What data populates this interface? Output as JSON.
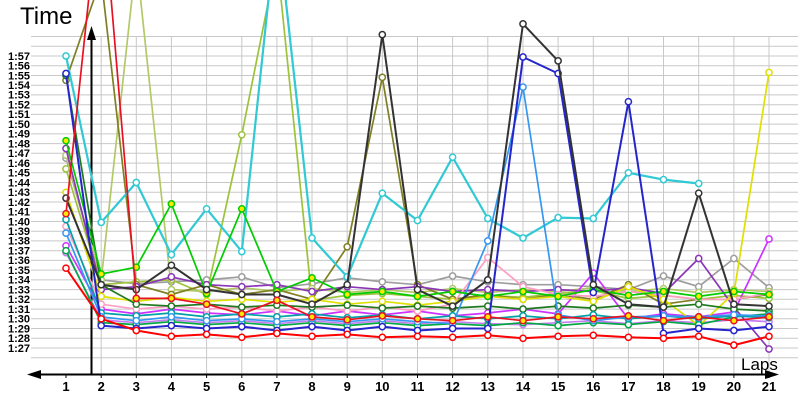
{
  "chart_data": {
    "type": "line",
    "title": "",
    "ylabel": "Time",
    "xlabel": "Laps",
    "grid": true,
    "legend": "none",
    "y_axis": {
      "unit": "m:ss lap time",
      "min_seconds": 87,
      "max_seconds": 117,
      "tick_step_seconds": 1,
      "tick_labels": [
        "1:27",
        "1:28",
        "1:29",
        "1:30",
        "1:31",
        "1:32",
        "1:33",
        "1:34",
        "1:35",
        "1:36",
        "1:37",
        "1:38",
        "1:39",
        "1:40",
        "1:41",
        "1:42",
        "1:43",
        "1:44",
        "1:45",
        "1:46",
        "1:47",
        "1:48",
        "1:49",
        "1:50",
        "1:51",
        "1:52",
        "1:53",
        "1:54",
        "1:55",
        "1:56",
        "1:57"
      ]
    },
    "x_axis": {
      "tick_labels": [
        "1",
        "2",
        "3",
        "4",
        "5",
        "6",
        "7",
        "8",
        "9",
        "10",
        "11",
        "12",
        "13",
        "14",
        "15",
        "16",
        "17",
        "18",
        "19",
        "20",
        "21"
      ]
    },
    "note_values_are_lap_times_in_seconds": "values above ~122 run off the top of the image (pit stops); null = no lap recorded",
    "series": [
      {
        "name": "gray",
        "color": "#9E9E9E",
        "marker_fill": "#FFFFFF",
        "values": [
          106.5,
          94,
          93.6,
          93.8,
          94,
          94.3,
          93.2,
          93.6,
          94.2,
          93.8,
          93.5,
          94.4,
          93.8,
          93.5,
          93.5,
          93.3,
          93,
          94.4,
          93.3,
          96.2,
          93.2
        ]
      },
      {
        "name": "yellowgreen-a",
        "color": "#9DC23B",
        "marker_fill": "#FFFFFF",
        "values": [
          105.4,
          93.5,
          93.8,
          94,
          92.5,
          108.9,
          127,
          91.9,
          92.4,
          92.6,
          92.3,
          92,
          92.4,
          92.2,
          92.6,
          92.9,
          92.1,
          92.4,
          92,
          92.4,
          92.1
        ]
      },
      {
        "name": "yellowgreen-b",
        "color": "#B3C968",
        "marker_fill": "#FFFFFF",
        "values": [
          106.8,
          94,
          127,
          93,
          92.8,
          93.2,
          92.8,
          93.1,
          92.7,
          93,
          92.7,
          93.1,
          92.7,
          93,
          92.8,
          93.2,
          92.8,
          93.1,
          92.7,
          93,
          92.8
        ]
      },
      {
        "name": "olive",
        "color": "#7F7F23",
        "marker_fill": "#FFFFFF",
        "values": [
          114.5,
          125,
          93.5,
          92.5,
          93.5,
          92.5,
          93,
          92,
          97.4,
          114.8,
          93.5,
          92,
          92.5,
          92,
          92.5,
          92,
          93.5,
          91.5,
          92,
          92,
          92.5
        ]
      },
      {
        "name": "purple",
        "color": "#8B35B8",
        "marker_fill": "#FFFFFF",
        "values": [
          107.5,
          93,
          93.3,
          94.3,
          93.5,
          93.3,
          93.5,
          92.8,
          93.3,
          93,
          93.3,
          92.8,
          93,
          92.8,
          93,
          92.8,
          93.2,
          92.6,
          96.2,
          91.2,
          86.9
        ]
      },
      {
        "name": "magenta",
        "color": "#CC33FF",
        "marker_fill": "#FFFFFF",
        "values": [
          97.5,
          91,
          90.5,
          91,
          90.6,
          90.4,
          90.8,
          90.3,
          90.8,
          90.4,
          90.8,
          90.3,
          90.6,
          91,
          90.5,
          94.7,
          90,
          90.5,
          90.2,
          90.7,
          98.2
        ]
      },
      {
        "name": "orchid",
        "color": "#C77DF2",
        "marker_fill": "#FFFFFF",
        "values": [
          96.8,
          89.9,
          89.6,
          89.9,
          89.6,
          89.8,
          89.5,
          89.8,
          89.5,
          89.8,
          89.5,
          89.7,
          89.5,
          89.4,
          89.6,
          89.8,
          89.5,
          89.8,
          89.6,
          89.9,
          89.7
        ]
      },
      {
        "name": "pink",
        "color": "#FF9EC4",
        "marker_fill": "#FFFFFF",
        "values": [
          99.5,
          91.5,
          91,
          91.3,
          91,
          91.2,
          90.8,
          91.2,
          90.8,
          91.2,
          90.8,
          91.5,
          96.3,
          93.3,
          92.5,
          92.3,
          92.8,
          92.4,
          92,
          92,
          92.6
        ]
      },
      {
        "name": "yellow",
        "color": "#DFDF00",
        "marker_fill": "#FFFFFF",
        "values": [
          103,
          92.3,
          91.8,
          92.2,
          91.8,
          92,
          91.7,
          92,
          91.5,
          91.8,
          91.4,
          91.8,
          92.3,
          92,
          92.3,
          91.8,
          93.3,
          92,
          89.3,
          92.6,
          115.3
        ]
      },
      {
        "name": "dark-green",
        "color": "#1F7A1F",
        "marker_fill": "#FFFFFF",
        "values": [
          115,
          93.5,
          91.5,
          91.3,
          91.5,
          91.2,
          91.4,
          91.2,
          91.4,
          91.1,
          91.3,
          91.1,
          91.3,
          91,
          91.3,
          91.1,
          91.4,
          91.2,
          91.5,
          91,
          90.8
        ]
      },
      {
        "name": "medium-green",
        "color": "#00A843",
        "marker_fill": "#FFFFFF",
        "values": [
          97,
          89.6,
          89.4,
          89.7,
          89.4,
          89.6,
          89.3,
          89.6,
          89.3,
          89.6,
          89.3,
          89.5,
          89.3,
          89.6,
          89.3,
          89.6,
          89.4,
          89.7,
          89.4,
          90.2,
          90.5
        ]
      },
      {
        "name": "teal",
        "color": "#00A0A8",
        "marker_fill": "#FFFFFF",
        "values": [
          100.2,
          90.6,
          90.3,
          90.6,
          90.2,
          90.5,
          90.2,
          90.5,
          90.1,
          90.4,
          90,
          90.3,
          90,
          90.3,
          90,
          90.4,
          90,
          90.3,
          90,
          90.3,
          90.1
        ]
      },
      {
        "name": "turquoise",
        "color": "#30C9D4",
        "marker_fill": "#FFFFFF",
        "width": 2.2,
        "values": [
          117,
          99.9,
          104,
          96.6,
          101.3,
          96.9,
          131,
          98.3,
          94.3,
          102.9,
          100.1,
          106.6,
          100.3,
          98.3,
          100.4,
          100.3,
          105,
          104.3,
          103.9,
          null,
          null
        ]
      },
      {
        "name": "dodger-blue",
        "color": "#3597F0",
        "marker_fill": "#FFFFFF",
        "values": [
          98.8,
          90.2,
          89.8,
          90.2,
          89.8,
          90,
          89.7,
          90,
          89.7,
          90,
          89.7,
          89.5,
          98,
          113.8,
          90.4,
          89.8,
          90.2,
          90.3,
          90.2,
          90.4,
          90.3
        ]
      },
      {
        "name": "bright-green",
        "color": "#00CC00",
        "marker_fill": "#FFE800",
        "values": [
          108.3,
          94.6,
          95.3,
          101.8,
          92.6,
          101.3,
          92.8,
          94.2,
          92.5,
          92.8,
          92.3,
          92.8,
          92.3,
          92.8,
          92.3,
          93,
          92.4,
          92.8,
          92.3,
          92.8,
          92.5
        ]
      },
      {
        "name": "blue",
        "color": "#2525CC",
        "marker_fill": "#FFFFFF",
        "width": 2,
        "values": [
          115.2,
          89.3,
          89,
          89.3,
          89,
          89.2,
          88.8,
          89.2,
          88.8,
          89.2,
          88.8,
          89,
          89,
          116.9,
          115.2,
          92.7,
          112.3,
          88.5,
          89,
          88.8,
          89.2
        ]
      },
      {
        "name": "black",
        "color": "#333333",
        "marker_fill": "#FFFFFF",
        "width": 2,
        "values": [
          102.4,
          93.5,
          93,
          95.5,
          93,
          92.5,
          92.5,
          91.5,
          93.5,
          119.2,
          93,
          91.3,
          94,
          120.3,
          116.5,
          93.5,
          91.5,
          91.2,
          102.9,
          91.5,
          91.3
        ]
      },
      {
        "name": "red-pit",
        "color": "#E81123",
        "marker_fill": "#FFE800",
        "values": [
          100.8,
          135,
          92.1,
          92.1,
          91.5,
          90.5,
          91.9,
          90.2,
          89.9,
          90.3,
          90,
          89.8,
          90.2,
          89.8,
          90.2,
          90,
          90.3,
          89.8,
          90.2,
          89.8,
          90.2
        ]
      },
      {
        "name": "red",
        "color": "#FF0000",
        "width": 2,
        "marker_fill": "#FFFFFF",
        "values": [
          95.2,
          90,
          88.8,
          88.2,
          88.4,
          88.1,
          88.5,
          88.2,
          88.4,
          88.1,
          88.2,
          88.1,
          88.3,
          88,
          88.2,
          88.3,
          88.1,
          88,
          88.2,
          87.3,
          88.2
        ]
      }
    ]
  }
}
